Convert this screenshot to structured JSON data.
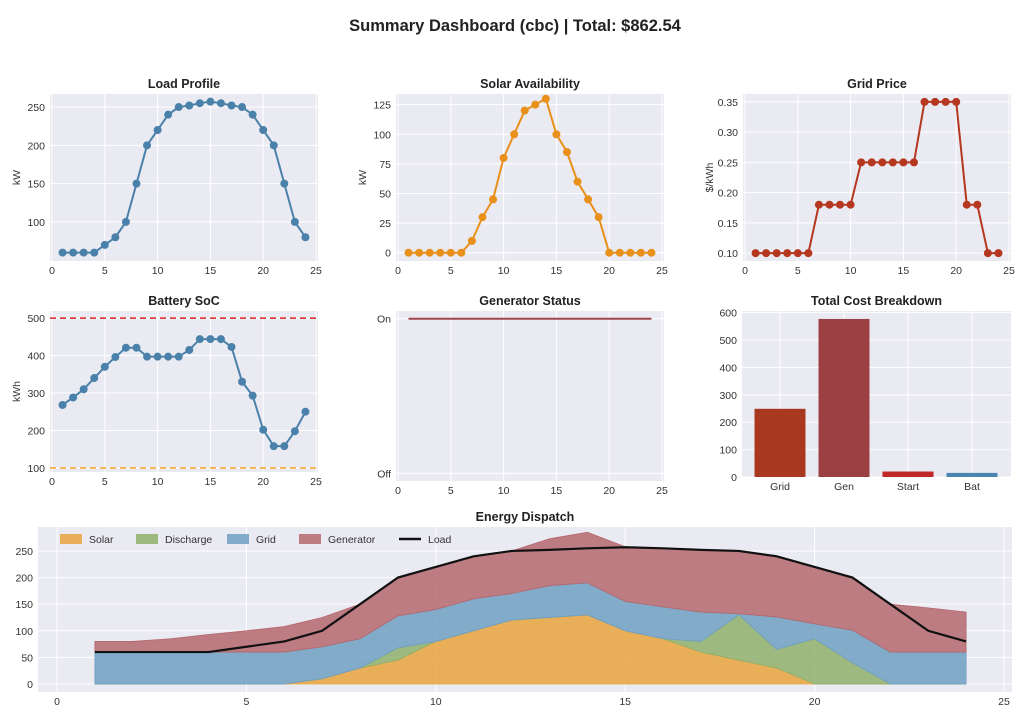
{
  "suptitle": "Summary Dashboard (cbc) | Total: $862.54",
  "chart_data": [
    {
      "id": "load",
      "type": "line",
      "title": "Load Profile",
      "ylabel": "kW",
      "x": [
        1,
        2,
        3,
        4,
        5,
        6,
        7,
        8,
        9,
        10,
        11,
        12,
        13,
        14,
        15,
        16,
        17,
        18,
        19,
        20,
        21,
        22,
        23,
        24
      ],
      "values": [
        60,
        60,
        60,
        60,
        70,
        80,
        100,
        150,
        200,
        220,
        240,
        250,
        252,
        255,
        257,
        255,
        252,
        250,
        240,
        220,
        200,
        150,
        100,
        80
      ],
      "xlim": [
        0,
        25
      ],
      "ylim": [
        49,
        267
      ],
      "xticks": [
        0,
        5,
        10,
        15,
        20,
        25
      ],
      "yticks": [
        100,
        150,
        200,
        250
      ],
      "color": "#4a81aa",
      "markers": true,
      "grid": true
    },
    {
      "id": "solar",
      "type": "line",
      "title": "Solar Availability",
      "ylabel": "kW",
      "x": [
        1,
        2,
        3,
        4,
        5,
        6,
        7,
        8,
        9,
        10,
        11,
        12,
        13,
        14,
        15,
        16,
        17,
        18,
        19,
        20,
        21,
        22,
        23,
        24
      ],
      "values": [
        0,
        0,
        0,
        0,
        0,
        0,
        10,
        30,
        45,
        80,
        100,
        120,
        125,
        130,
        100,
        85,
        60,
        45,
        30,
        0,
        0,
        0,
        0,
        0
      ],
      "xlim": [
        0,
        25
      ],
      "ylim": [
        -7,
        134
      ],
      "xticks": [
        0,
        5,
        10,
        15,
        20,
        25
      ],
      "yticks": [
        0,
        25,
        50,
        75,
        100,
        125
      ],
      "color": "#e8901a",
      "markers": true,
      "grid": true
    },
    {
      "id": "price",
      "type": "line",
      "title": "Grid Price",
      "ylabel": "$/kWh",
      "x": [
        1,
        2,
        3,
        4,
        5,
        6,
        7,
        8,
        9,
        10,
        11,
        12,
        13,
        14,
        15,
        16,
        17,
        18,
        19,
        20,
        21,
        22,
        23,
        24
      ],
      "values": [
        0.1,
        0.1,
        0.1,
        0.1,
        0.1,
        0.1,
        0.18,
        0.18,
        0.18,
        0.18,
        0.25,
        0.25,
        0.25,
        0.25,
        0.25,
        0.25,
        0.35,
        0.35,
        0.35,
        0.35,
        0.18,
        0.18,
        0.1,
        0.1
      ],
      "xlim": [
        0,
        25
      ],
      "ylim": [
        0.087,
        0.363
      ],
      "xticks": [
        0,
        5,
        10,
        15,
        20,
        25
      ],
      "yticks": [
        "0.10",
        "0.15",
        "0.20",
        "0.25",
        "0.30",
        "0.35"
      ],
      "color": "#b5371f",
      "markers": true,
      "grid": true
    },
    {
      "id": "soc",
      "type": "line",
      "title": "Battery SoC",
      "ylabel": "kWh",
      "x": [
        1,
        2,
        3,
        4,
        5,
        6,
        7,
        8,
        9,
        10,
        11,
        12,
        13,
        14,
        15,
        16,
        17,
        18,
        19,
        20,
        21,
        22,
        23,
        24
      ],
      "values": [
        268,
        288,
        310,
        340,
        370,
        396,
        421,
        421,
        397,
        397,
        397,
        397,
        415,
        444,
        444,
        444,
        423,
        330,
        293,
        202,
        158,
        158,
        198,
        250
      ],
      "xlim": [
        0,
        25
      ],
      "ylim": [
        89,
        519
      ],
      "xticks": [
        0,
        5,
        10,
        15,
        20,
        25
      ],
      "yticks": [
        100,
        200,
        300,
        400,
        500
      ],
      "color": "#4a81aa",
      "markers": true,
      "grid": true,
      "hlines": [
        {
          "value": 500,
          "color": "#d62728"
        },
        {
          "value": 100,
          "color": "#f5a623"
        }
      ]
    },
    {
      "id": "gen",
      "type": "line",
      "title": "Generator Status",
      "ylabel": "",
      "x": [
        1,
        2,
        3,
        4,
        5,
        6,
        7,
        8,
        9,
        10,
        11,
        12,
        13,
        14,
        15,
        16,
        17,
        18,
        19,
        20,
        21,
        22,
        23,
        24
      ],
      "values": [
        1,
        1,
        1,
        1,
        1,
        1,
        1,
        1,
        1,
        1,
        1,
        1,
        1,
        1,
        1,
        1,
        1,
        1,
        1,
        1,
        1,
        1,
        1,
        1
      ],
      "xlim": [
        0,
        25
      ],
      "ylim": [
        -0.05,
        1.05
      ],
      "xticks": [
        0,
        5,
        10,
        15,
        20,
        25
      ],
      "yticks": [
        0,
        1
      ],
      "yticklabels": [
        "Off",
        "On"
      ],
      "color": "#a0454b",
      "markers": false,
      "grid": true,
      "step": true
    },
    {
      "id": "cost",
      "type": "bar",
      "title": "Total Cost Breakdown",
      "categories": [
        "Grid",
        "Gen",
        "Start",
        "Bat"
      ],
      "values": [
        249,
        577,
        20,
        15
      ],
      "colors": [
        "#a8381e",
        "#9c4044",
        "#c0282a",
        "#4b86b0"
      ],
      "ylim": [
        0,
        606
      ],
      "yticks": [
        0,
        100,
        200,
        300,
        400,
        500,
        600
      ],
      "grid": true
    },
    {
      "id": "dispatch",
      "type": "area",
      "title": "Energy Dispatch",
      "x": [
        1,
        2,
        3,
        4,
        5,
        6,
        7,
        8,
        9,
        10,
        11,
        12,
        13,
        14,
        15,
        16,
        17,
        18,
        19,
        20,
        21,
        22,
        23,
        24
      ],
      "series": [
        {
          "name": "Solar",
          "color": "#e8a33d",
          "values": [
            0,
            0,
            0,
            0,
            0,
            0,
            10,
            30,
            45,
            80,
            100,
            120,
            125,
            130,
            100,
            85,
            60,
            45,
            30,
            0,
            0,
            0,
            0,
            0
          ]
        },
        {
          "name": "Discharge",
          "color": "#8fb06b",
          "values": [
            0,
            0,
            0,
            0,
            0,
            0,
            0,
            0,
            23,
            0,
            0,
            0,
            0,
            0,
            0,
            0,
            20,
            85,
            35,
            85,
            40,
            0,
            0,
            0
          ]
        },
        {
          "name": "Grid",
          "color": "#6fa0c2",
          "values": [
            60,
            60,
            60,
            60,
            60,
            60,
            60,
            55,
            60,
            60,
            60,
            50,
            60,
            60,
            55,
            60,
            55,
            2,
            61,
            28,
            61,
            60,
            60,
            60
          ]
        },
        {
          "name": "Generator",
          "color": "#b5676e",
          "values": [
            20,
            20,
            25,
            33,
            40,
            48,
            55,
            65,
            72,
            80,
            80,
            80,
            88,
            95,
            103,
            110,
            117,
            118,
            114,
            107,
            99,
            90,
            83,
            75
          ]
        }
      ],
      "line": {
        "name": "Load",
        "color": "#111111",
        "values": [
          60,
          60,
          60,
          60,
          70,
          80,
          100,
          150,
          200,
          220,
          240,
          250,
          252,
          255,
          257,
          255,
          252,
          250,
          240,
          220,
          200,
          150,
          100,
          80
        ]
      },
      "xlim": [
        0,
        25
      ],
      "ylim": [
        -15,
        295
      ],
      "xticks": [
        0,
        5,
        10,
        15,
        20,
        25
      ],
      "yticks": [
        0,
        50,
        100,
        150,
        200,
        250
      ],
      "legend": "top-left",
      "grid": true
    }
  ]
}
